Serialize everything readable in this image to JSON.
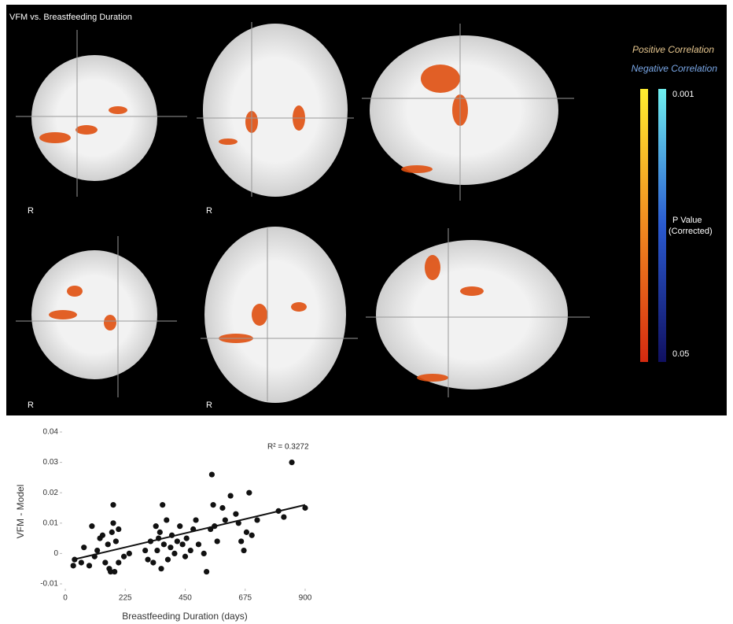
{
  "figure": {
    "title": "VFM vs. Breastfeeding Duration",
    "legend": {
      "positive": "Positive Correlation",
      "negative": "Negative Correlation",
      "top_label": "0.001",
      "bottom_label": "0.05",
      "axis_title_1": "P Value",
      "axis_title_2": "(Corrected)"
    },
    "orientation_labels": [
      "R",
      "R",
      "R",
      "R"
    ]
  },
  "chart_data": {
    "type": "scatter",
    "annotation": "R² = 0.3272",
    "x_label": "Breastfeeding Duration (days)",
    "y_label": "VFM - Model",
    "color": "#111111",
    "x": [
      30,
      35,
      60,
      70,
      90,
      100,
      110,
      120,
      130,
      140,
      150,
      160,
      165,
      170,
      175,
      180,
      180,
      185,
      190,
      200,
      200,
      220,
      240,
      300,
      310,
      320,
      330,
      340,
      345,
      350,
      355,
      360,
      365,
      370,
      380,
      385,
      395,
      400,
      410,
      420,
      430,
      440,
      450,
      455,
      470,
      480,
      490,
      500,
      520,
      530,
      545,
      550,
      555,
      560,
      570,
      590,
      600,
      620,
      640,
      650,
      660,
      670,
      680,
      690,
      700,
      720,
      800,
      820,
      850,
      900
    ],
    "values": [
      -0.004,
      -0.002,
      -0.003,
      0.002,
      -0.004,
      0.009,
      -0.001,
      0.001,
      0.005,
      0.006,
      -0.003,
      0.003,
      -0.005,
      -0.006,
      0.007,
      0.016,
      0.01,
      -0.006,
      0.004,
      0.008,
      -0.003,
      -0.001,
      0,
      0.001,
      -0.002,
      0.004,
      -0.003,
      0.009,
      0.001,
      0.005,
      0.007,
      -0.005,
      0.016,
      0.003,
      0.011,
      -0.002,
      0.002,
      0.006,
      0,
      0.004,
      0.009,
      0.003,
      -0.001,
      0.005,
      0.001,
      0.008,
      0.011,
      0.003,
      0,
      -0.006,
      0.008,
      0.026,
      0.016,
      0.009,
      0.004,
      0.015,
      0.011,
      0.019,
      0.013,
      0.01,
      0.004,
      0.001,
      0.007,
      0.02,
      0.006,
      0.011,
      0.014,
      0.012,
      0.03,
      0.015
    ],
    "trendline": {
      "x": [
        30,
        900
      ],
      "y": [
        -0.002,
        0.016
      ]
    },
    "xlim": [
      0,
      900
    ],
    "xticks": [
      0,
      225,
      450,
      675,
      900
    ],
    "ylim": [
      -0.01,
      0.04
    ],
    "yticks": [
      -0.01,
      0,
      0.01,
      0.02,
      0.03,
      0.04
    ]
  }
}
